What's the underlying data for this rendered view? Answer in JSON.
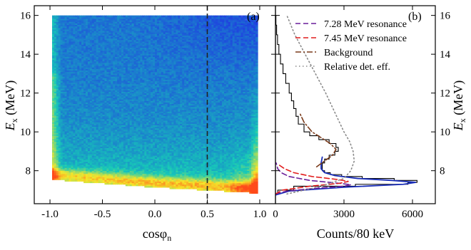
{
  "chart_data": [
    {
      "type": "heatmap",
      "panel_label": "(a)",
      "xlabel": "cosφ",
      "xlabel_sub": "n",
      "ylabel": "E",
      "ylabel_sub": "x",
      "ylabel_unit": "(MeV)",
      "xlim": [
        -1.15,
        1.15
      ],
      "ylim": [
        6.3,
        16.5
      ],
      "xticks": [
        -1.0,
        -0.5,
        0.0,
        0.5,
        1.0
      ],
      "xtick_labels": [
        "-1.0",
        "-0.5",
        "0.0",
        "0.5",
        "1.0"
      ],
      "yticks": [
        8,
        10,
        12,
        14,
        16
      ],
      "ytick_labels": [
        "8",
        "10",
        "12",
        "14",
        "16"
      ],
      "cut_line_x": 0.5,
      "density_region": {
        "x_range": [
          -0.98,
          0.98
        ],
        "y_max": 16.0,
        "lower_edge": [
          [
            -0.98,
            7.55
          ],
          [
            -0.5,
            7.35
          ],
          [
            0.0,
            7.15
          ],
          [
            0.5,
            7.0
          ],
          [
            0.98,
            6.85
          ]
        ]
      },
      "colors": {
        "low": "#1f3fe0",
        "mid": "#17c9b8",
        "high": "#f5e62a",
        "peak": "#ff4a1a"
      }
    },
    {
      "type": "line",
      "panel_label": "(b)",
      "xlabel": "Counts/80 keV",
      "ylabel": "E",
      "ylabel_sub": "x",
      "ylabel_unit": "(MeV)",
      "xlim": [
        0,
        7000
      ],
      "ylim": [
        6.3,
        16.5
      ],
      "xticks": [
        0,
        3000,
        6000
      ],
      "xtick_labels": [
        "0",
        "3000",
        "6000"
      ],
      "yticks": [
        8,
        10,
        12,
        14,
        16
      ],
      "ytick_labels": [
        "8",
        "10",
        "12",
        "14",
        "16"
      ],
      "legend_position": "top-right",
      "series": [
        {
          "name": "",
          "style": "histogram",
          "color": "#000000",
          "points": [
            [
              6.8,
              100
            ],
            [
              7.0,
              800
            ],
            [
              7.2,
              3500
            ],
            [
              7.3,
              5800
            ],
            [
              7.4,
              6200
            ],
            [
              7.5,
              5200
            ],
            [
              7.6,
              3800
            ],
            [
              7.7,
              2900
            ],
            [
              7.8,
              2400
            ],
            [
              7.9,
              2150
            ],
            [
              8.0,
              2050
            ],
            [
              8.2,
              2050
            ],
            [
              8.4,
              2150
            ],
            [
              8.6,
              2350
            ],
            [
              8.8,
              2600
            ],
            [
              9.0,
              2750
            ],
            [
              9.2,
              2650
            ],
            [
              9.4,
              2350
            ],
            [
              9.6,
              1900
            ],
            [
              9.8,
              1500
            ],
            [
              10.0,
              1250
            ],
            [
              10.4,
              1000
            ],
            [
              10.8,
              900
            ],
            [
              11.2,
              800
            ],
            [
              11.6,
              700
            ],
            [
              12.0,
              600
            ],
            [
              12.5,
              450
            ],
            [
              13.0,
              330
            ],
            [
              13.5,
              220
            ],
            [
              14.0,
              150
            ],
            [
              14.5,
              90
            ],
            [
              15.0,
              50
            ],
            [
              15.5,
              20
            ],
            [
              16.0,
              0
            ]
          ]
        },
        {
          "name": "",
          "style": "solid",
          "color": "#1a2eb8",
          "points": [
            [
              6.75,
              0
            ],
            [
              6.95,
              600
            ],
            [
              7.15,
              3000
            ],
            [
              7.3,
              5600
            ],
            [
              7.4,
              6150
            ],
            [
              7.5,
              5100
            ],
            [
              7.6,
              3600
            ],
            [
              7.75,
              2600
            ],
            [
              7.9,
              2150
            ],
            [
              8.1,
              2000
            ],
            [
              8.4,
              2000
            ],
            [
              8.7,
              2050
            ]
          ]
        },
        {
          "name": "7.28 MeV resonance",
          "style": "dashed",
          "color": "#6a1f9a",
          "points": [
            [
              6.8,
              0
            ],
            [
              6.95,
              500
            ],
            [
              7.1,
              1800
            ],
            [
              7.2,
              3000
            ],
            [
              7.28,
              3300
            ],
            [
              7.35,
              2800
            ],
            [
              7.5,
              1500
            ],
            [
              7.7,
              600
            ],
            [
              7.9,
              250
            ],
            [
              8.1,
              100
            ],
            [
              8.4,
              30
            ]
          ]
        },
        {
          "name": "7.45 MeV resonance",
          "style": "dashed",
          "color": "#e11d1d",
          "points": [
            [
              6.8,
              0
            ],
            [
              7.0,
              300
            ],
            [
              7.2,
              1500
            ],
            [
              7.35,
              2800
            ],
            [
              7.45,
              3200
            ],
            [
              7.55,
              2700
            ],
            [
              7.7,
              1600
            ],
            [
              7.9,
              800
            ],
            [
              8.1,
              400
            ],
            [
              8.3,
              150
            ]
          ]
        },
        {
          "name": "Background",
          "style": "dashdot",
          "color": "#7a3a1a",
          "points": [
            [
              8.2,
              1800
            ],
            [
              8.5,
              2150
            ],
            [
              8.8,
              2500
            ],
            [
              9.1,
              2650
            ],
            [
              9.4,
              2400
            ],
            [
              9.7,
              2000
            ],
            [
              10.0,
              1600
            ],
            [
              10.5,
              1250
            ],
            [
              11.0,
              1050
            ]
          ]
        },
        {
          "name": "Relative det. eff.",
          "style": "dotted",
          "color": "#8a8a8a",
          "points": [
            [
              6.8,
              500
            ],
            [
              7.2,
              2000
            ],
            [
              7.6,
              3000
            ],
            [
              8.0,
              3300
            ],
            [
              8.5,
              3450
            ],
            [
              9.0,
              3400
            ],
            [
              9.5,
              3250
            ],
            [
              10.0,
              3000
            ],
            [
              11.0,
              2600
            ],
            [
              12.0,
              2200
            ],
            [
              13.0,
              1750
            ],
            [
              14.0,
              1300
            ],
            [
              15.0,
              850
            ],
            [
              16.0,
              500
            ]
          ]
        }
      ]
    }
  ]
}
